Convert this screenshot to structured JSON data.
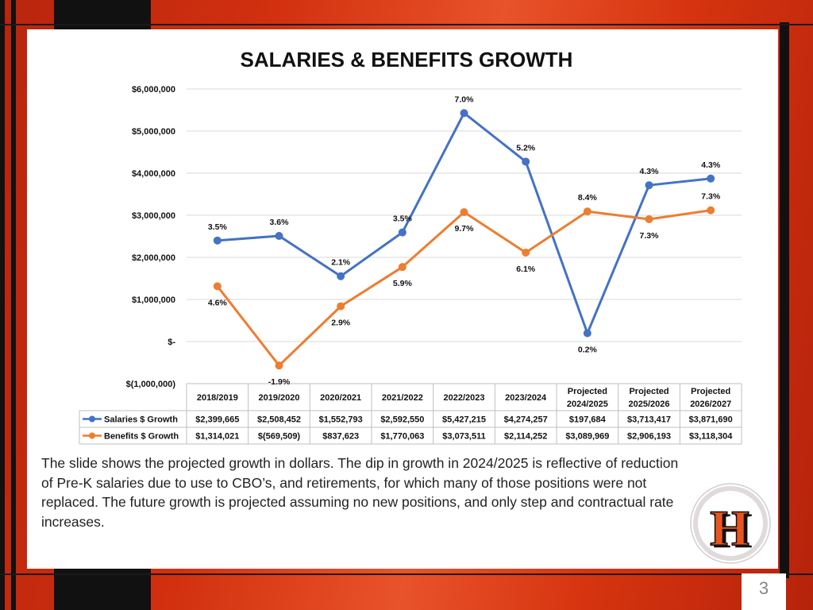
{
  "slide": {
    "caption": "The slide shows the projected growth in dollars.  The dip in growth in 2024/2025 is reflective of reduction of Pre-K salaries due to use to CBO’s, and retirements, for which many of those positions were not replaced.  The future growth is projected assuming no new positions, and only step and contractual rate increases.",
    "page_number": "3",
    "logo_letter": "H"
  },
  "colors": {
    "salaries": "#4472c4",
    "benefits": "#ed7d31",
    "grid": "#d9d9d9",
    "frame_dark": "#111111",
    "frame_accent": "#d2300f"
  },
  "chart_data": {
    "type": "line",
    "title": "SALARIES & BENEFITS GROWTH",
    "categories": [
      [
        "2018/2019"
      ],
      [
        "2019/2020"
      ],
      [
        "2020/2021"
      ],
      [
        "2021/2022"
      ],
      [
        "2022/2023"
      ],
      [
        "2023/2024"
      ],
      [
        "Projected",
        "2024/2025"
      ],
      [
        "Projected",
        "2025/2026"
      ],
      [
        "Projected",
        "2026/2027"
      ]
    ],
    "ylim": [
      -1000000,
      6000000
    ],
    "yticks": [
      {
        "value": 6000000,
        "label": "$6,000,000"
      },
      {
        "value": 5000000,
        "label": "$5,000,000"
      },
      {
        "value": 4000000,
        "label": "$4,000,000"
      },
      {
        "value": 3000000,
        "label": "$3,000,000"
      },
      {
        "value": 2000000,
        "label": "$2,000,000"
      },
      {
        "value": 1000000,
        "label": "$1,000,000"
      },
      {
        "value": 0,
        "label": "$-"
      },
      {
        "value": -1000000,
        "label": "$(1,000,000)"
      }
    ],
    "grid": true,
    "legend": "data-table",
    "series": [
      {
        "name": "Salaries $ Growth",
        "color": "#4472c4",
        "values": [
          2399665,
          2508452,
          1552793,
          2592550,
          5427215,
          4274257,
          197684,
          3713417,
          3871690
        ],
        "table_values": [
          "$2,399,665",
          "$2,508,452",
          "$1,552,793",
          "$2,592,550",
          "$5,427,215",
          "$4,274,257",
          "$197,684",
          "$3,713,417",
          "$3,871,690"
        ],
        "labels": [
          "3.5%",
          "3.6%",
          "2.1%",
          "3.5%",
          "7.0%",
          "5.2%",
          "0.2%",
          "4.3%",
          "4.3%"
        ],
        "label_side": [
          "above",
          "above",
          "above",
          "above",
          "above",
          "above",
          "below",
          "above",
          "above"
        ]
      },
      {
        "name": "Benefits $ Growth",
        "color": "#ed7d31",
        "values": [
          1314021,
          -569509,
          837623,
          1770063,
          3073511,
          2114252,
          3089969,
          2906193,
          3118304
        ],
        "table_values": [
          "$1,314,021",
          "$(569,509)",
          "$837,623",
          "$1,770,063",
          "$3,073,511",
          "$2,114,252",
          "$3,089,969",
          "$2,906,193",
          "$3,118,304"
        ],
        "labels": [
          "4.6%",
          "-1.9%",
          "2.9%",
          "5.9%",
          "9.7%",
          "6.1%",
          "8.4%",
          "7.3%",
          "7.3%"
        ],
        "label_side": [
          "below",
          "below",
          "below",
          "below",
          "below",
          "below",
          "above",
          "below",
          "above"
        ]
      }
    ]
  }
}
